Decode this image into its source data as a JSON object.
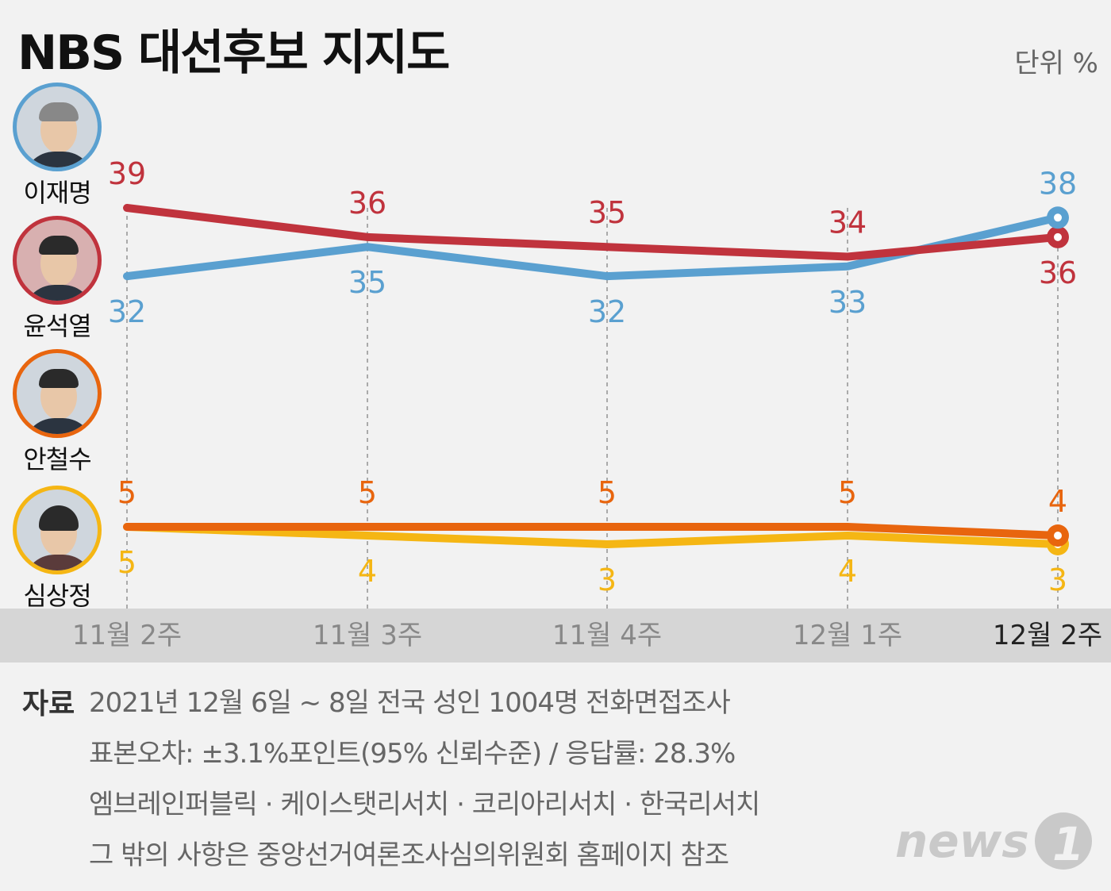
{
  "header": {
    "title": "NBS 대선후보 지지도",
    "unit": "단위 %"
  },
  "candidates": [
    {
      "name": "이재명",
      "color": "#5aa0d0"
    },
    {
      "name": "윤석열",
      "color": "#c0333d"
    },
    {
      "name": "안철수",
      "color": "#e8650e"
    },
    {
      "name": "심상정",
      "color": "#f5b614"
    }
  ],
  "chart_data": {
    "type": "line",
    "categories": [
      "11월 2주",
      "11월 3주",
      "11월 4주",
      "12월 1주",
      "12월 2주"
    ],
    "series": [
      {
        "name": "이재명",
        "color": "#5aa0d0",
        "values": [
          32,
          35,
          32,
          33,
          38
        ]
      },
      {
        "name": "윤석열",
        "color": "#c0333d",
        "values": [
          39,
          36,
          35,
          34,
          36
        ]
      },
      {
        "name": "안철수",
        "color": "#e8650e",
        "values": [
          5,
          5,
          5,
          5,
          4
        ]
      },
      {
        "name": "심상정",
        "color": "#f5b614",
        "values": [
          5,
          4,
          3,
          4,
          3
        ]
      }
    ],
    "grid": "vertical dashed",
    "highlight_last": true
  },
  "source": {
    "label": "자료",
    "lines": [
      "2021년 12월 6일 ~ 8일 전국 성인 1004명 전화면접조사",
      "표본오차: ±3.1%포인트(95% 신뢰수준) / 응답률: 28.3%",
      "엠브레인퍼블릭 · 케이스탯리서치 · 코리아리서치 · 한국리서치",
      "그 밖의 사항은 중앙선거여론조사심의위원회 홈페이지 참조"
    ]
  },
  "logo": {
    "text": "news1"
  }
}
